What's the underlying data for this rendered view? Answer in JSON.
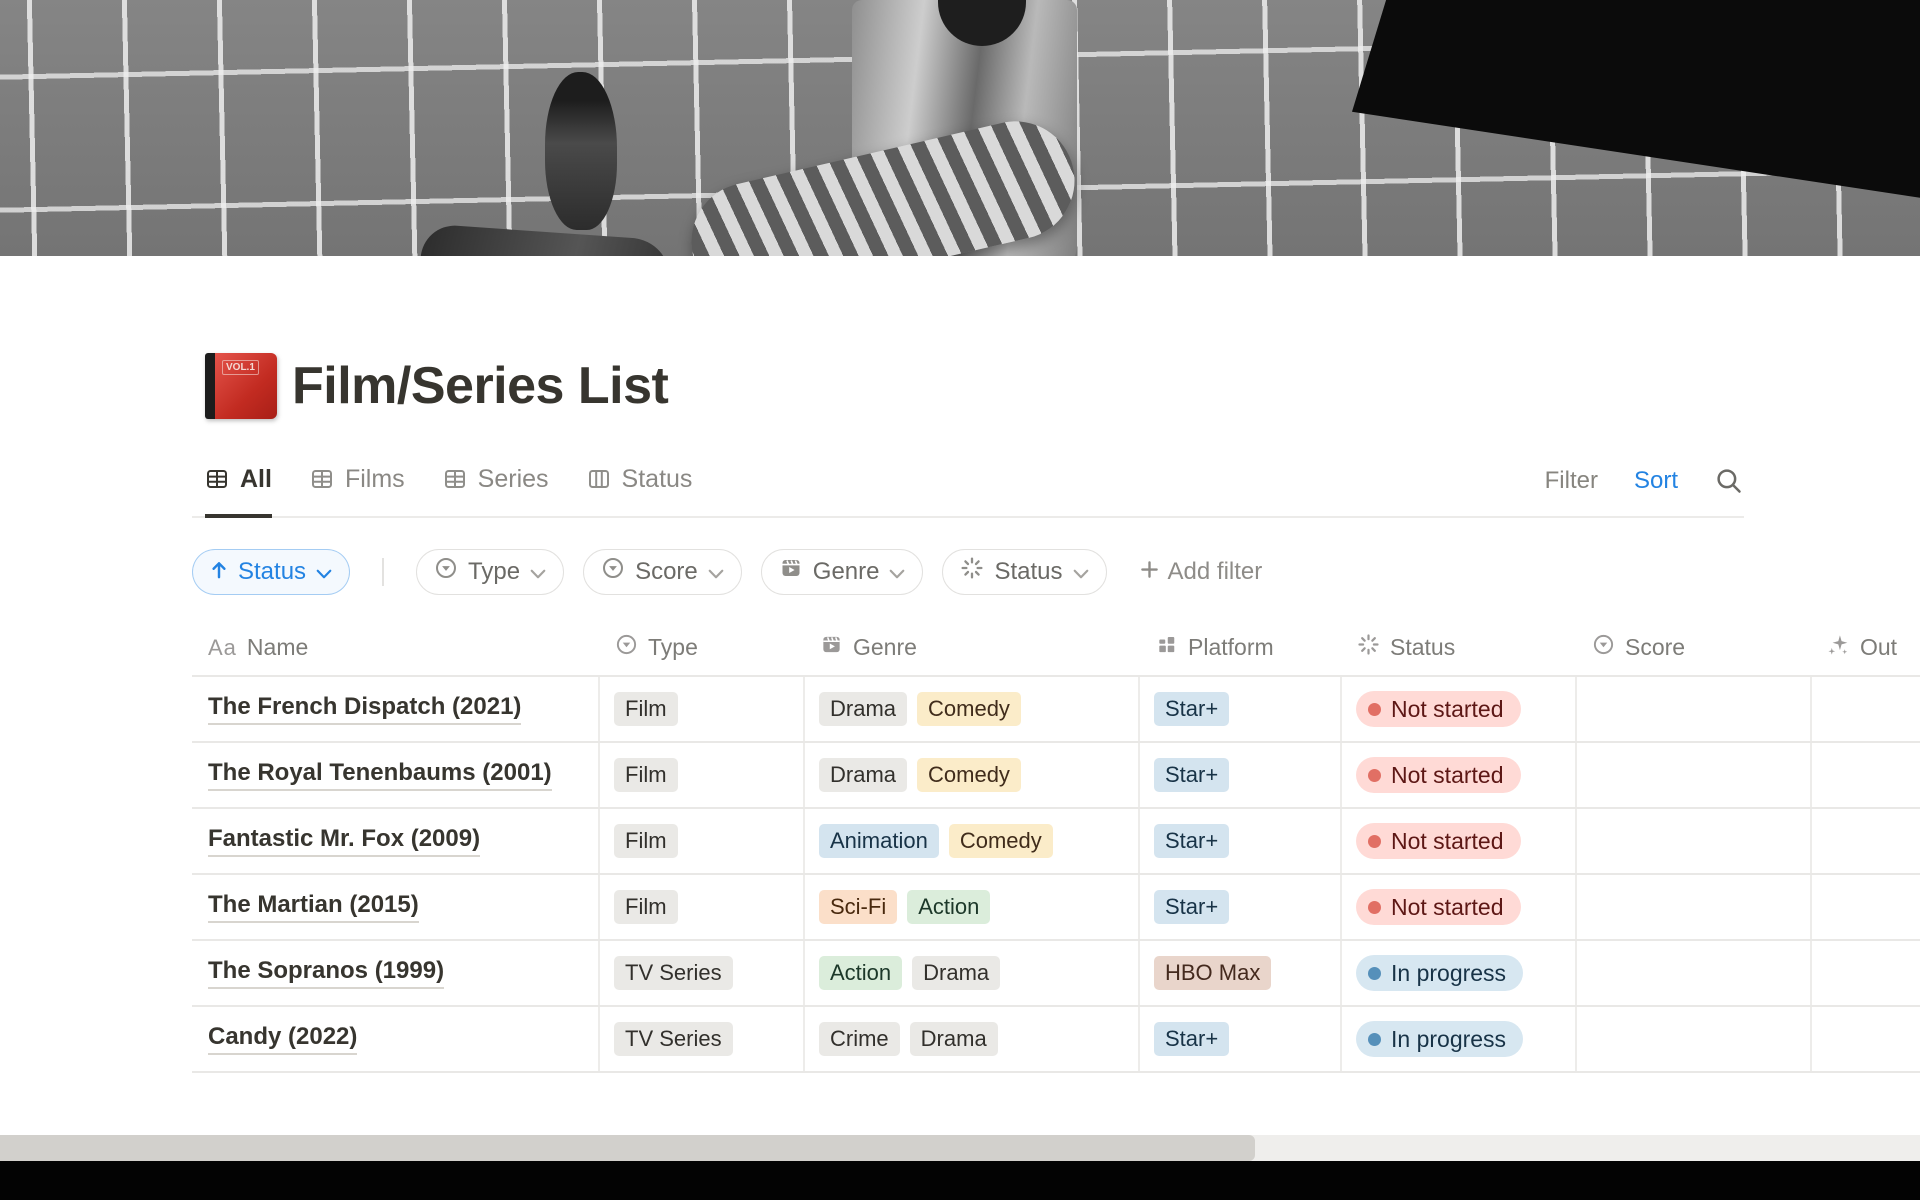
{
  "page": {
    "title": "Film/Series List",
    "icon": "red-book-emoji"
  },
  "view_tabs": {
    "tabs": [
      {
        "label": "All",
        "icon": "table-view-icon",
        "active": true
      },
      {
        "label": "Films",
        "icon": "table-view-icon",
        "active": false
      },
      {
        "label": "Series",
        "icon": "table-view-icon",
        "active": false
      },
      {
        "label": "Status",
        "icon": "board-view-icon",
        "active": false
      }
    ],
    "filter_label": "Filter",
    "sort_label": "Sort",
    "search_icon": "search-icon"
  },
  "filter_bar": {
    "sort_chip": {
      "label": "Status",
      "icon": "arrow-up-icon"
    },
    "chips": [
      {
        "label": "Type",
        "icon": "select-icon"
      },
      {
        "label": "Score",
        "icon": "select-icon"
      },
      {
        "label": "Genre",
        "icon": "film-icon"
      },
      {
        "label": "Status",
        "icon": "status-spinner-icon"
      }
    ],
    "add_filter_label": "Add filter"
  },
  "table": {
    "columns": [
      {
        "label": "Name",
        "icon": "text-aa-icon"
      },
      {
        "label": "Type",
        "icon": "select-icon"
      },
      {
        "label": "Genre",
        "icon": "film-icon"
      },
      {
        "label": "Platform",
        "icon": "grid-icon"
      },
      {
        "label": "Status",
        "icon": "status-spinner-icon"
      },
      {
        "label": "Score",
        "icon": "select-icon"
      },
      {
        "label": "Out",
        "icon": "sparkles-icon"
      }
    ],
    "rows": [
      {
        "name": "The French Dispatch (2021)",
        "type": "Film",
        "genres": [
          {
            "label": "Drama",
            "color": "gray"
          },
          {
            "label": "Comedy",
            "color": "yellow"
          }
        ],
        "platforms": [
          {
            "label": "Star+",
            "color": "blue"
          }
        ],
        "status": {
          "label": "Not started",
          "color": "red"
        },
        "score": "",
        "out": ""
      },
      {
        "name": "The Royal Tenenbaums (2001)",
        "type": "Film",
        "genres": [
          {
            "label": "Drama",
            "color": "gray"
          },
          {
            "label": "Comedy",
            "color": "yellow"
          }
        ],
        "platforms": [
          {
            "label": "Star+",
            "color": "blue"
          }
        ],
        "status": {
          "label": "Not started",
          "color": "red"
        },
        "score": "",
        "out": ""
      },
      {
        "name": "Fantastic Mr. Fox (2009)",
        "type": "Film",
        "genres": [
          {
            "label": "Animation",
            "color": "blue"
          },
          {
            "label": "Comedy",
            "color": "yellow"
          }
        ],
        "platforms": [
          {
            "label": "Star+",
            "color": "blue"
          }
        ],
        "status": {
          "label": "Not started",
          "color": "red"
        },
        "score": "",
        "out": ""
      },
      {
        "name": "The Martian (2015)",
        "type": "Film",
        "genres": [
          {
            "label": "Sci-Fi",
            "color": "orange"
          },
          {
            "label": "Action",
            "color": "green"
          }
        ],
        "platforms": [
          {
            "label": "Star+",
            "color": "blue"
          }
        ],
        "status": {
          "label": "Not started",
          "color": "red"
        },
        "score": "",
        "out": ""
      },
      {
        "name": "The Sopranos (1999)",
        "type": "TV Series",
        "genres": [
          {
            "label": "Action",
            "color": "green"
          },
          {
            "label": "Drama",
            "color": "gray"
          }
        ],
        "platforms": [
          {
            "label": "HBO Max",
            "color": "brown"
          }
        ],
        "status": {
          "label": "In progress",
          "color": "blue"
        },
        "score": "",
        "out": ""
      },
      {
        "name": "Candy (2022)",
        "type": "TV Series",
        "genres": [
          {
            "label": "Crime",
            "color": "gray"
          },
          {
            "label": "Drama",
            "color": "gray"
          }
        ],
        "platforms": [
          {
            "label": "Star+",
            "color": "blue"
          }
        ],
        "status": {
          "label": "In progress",
          "color": "blue"
        },
        "score": "",
        "out": ""
      }
    ]
  },
  "tag_colors": {
    "gray": {
      "bg": "#EAE9E6",
      "text": "#32302C"
    },
    "yellow": {
      "bg": "#FBECC9",
      "text": "#402C1B"
    },
    "blue": {
      "bg": "#D4E4EF",
      "text": "#183347"
    },
    "orange": {
      "bg": "#FBDFC9",
      "text": "#49290E"
    },
    "green": {
      "bg": "#DBEDDB",
      "text": "#1C3829"
    },
    "brown": {
      "bg": "#E9D5CB",
      "text": "#442A1E"
    }
  },
  "status_colors": {
    "red": {
      "bg": "#FFDAD6",
      "text": "#5D1715",
      "dot": "#E16F64"
    },
    "blue": {
      "bg": "#D7E7F1",
      "text": "#183347",
      "dot": "#5690BA"
    }
  },
  "accent_color": "#2383E2"
}
